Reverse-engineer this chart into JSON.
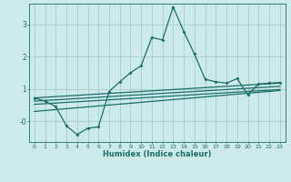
{
  "title": "",
  "xlabel": "Humidex (Indice chaleur)",
  "background_color": "#cceaea",
  "grid_color": "#aacccc",
  "line_color": "#1a6e6a",
  "xlim": [
    -0.5,
    23.5
  ],
  "ylim": [
    -0.65,
    3.65
  ],
  "yticks": [
    0,
    1,
    2,
    3
  ],
  "ytick_labels": [
    "-0",
    "1",
    "2",
    "3"
  ],
  "xticks": [
    0,
    1,
    2,
    3,
    4,
    5,
    6,
    7,
    8,
    9,
    10,
    11,
    12,
    13,
    14,
    15,
    16,
    17,
    18,
    19,
    20,
    21,
    22,
    23
  ],
  "main_line_x": [
    0,
    1,
    2,
    3,
    4,
    5,
    6,
    7,
    8,
    9,
    10,
    11,
    12,
    13,
    14,
    15,
    16,
    17,
    18,
    19,
    20,
    21,
    22,
    23
  ],
  "main_line_y": [
    0.72,
    0.62,
    0.45,
    -0.15,
    -0.42,
    -0.22,
    -0.18,
    0.92,
    1.22,
    1.5,
    1.72,
    2.6,
    2.52,
    3.55,
    2.78,
    2.08,
    1.3,
    1.22,
    1.18,
    1.32,
    0.82,
    1.15,
    1.18,
    1.2
  ],
  "linear_line1_x": [
    0,
    23
  ],
  "linear_line1_y": [
    0.72,
    1.18
  ],
  "linear_line2_x": [
    0,
    23
  ],
  "linear_line2_y": [
    0.62,
    1.08
  ],
  "linear_line3_x": [
    0,
    23
  ],
  "linear_line3_y": [
    0.52,
    0.98
  ],
  "linear_line4_x": [
    0,
    23
  ],
  "linear_line4_y": [
    0.3,
    0.95
  ]
}
